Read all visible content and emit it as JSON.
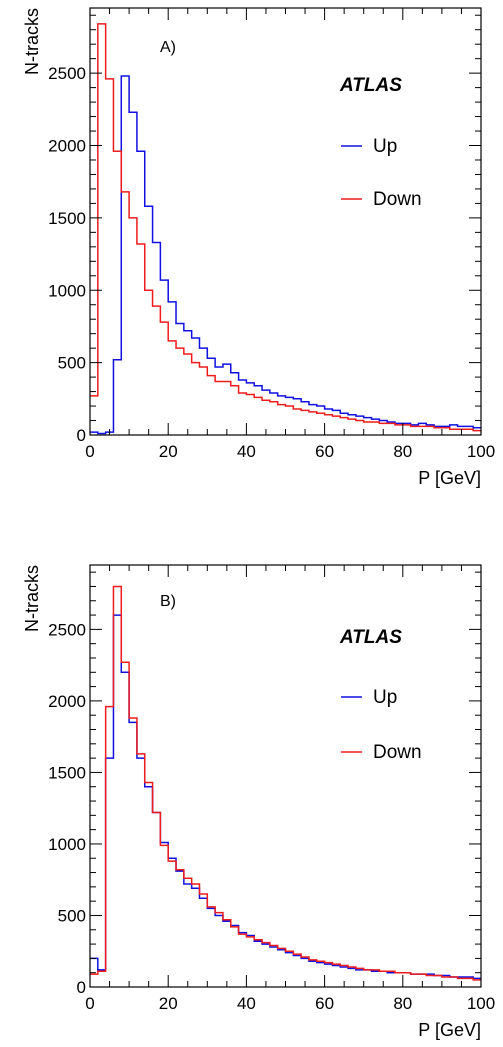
{
  "colors": {
    "up": "#1010e0",
    "down": "#ee1c1c",
    "axis": "#000000"
  },
  "chart_data": [
    {
      "type": "histogram",
      "panel_label": "A)",
      "experiment_label": "ATLAS",
      "xlabel": "P [GeV]",
      "ylabel": "N-tracks",
      "xlim": [
        0,
        100
      ],
      "ylim": [
        0,
        2950
      ],
      "x_ticks": [
        0,
        20,
        40,
        60,
        80,
        100
      ],
      "y_ticks": [
        0,
        500,
        1000,
        1500,
        2000,
        2500
      ],
      "bin_edges_start": 0,
      "bin_width": 2,
      "legend": {
        "placement": "right",
        "entries": [
          "Up",
          "Down"
        ]
      },
      "series": [
        {
          "name": "Up",
          "color": "#1010e0",
          "values": [
            20,
            10,
            20,
            520,
            2480,
            2230,
            1960,
            1580,
            1330,
            1070,
            920,
            770,
            720,
            670,
            600,
            530,
            470,
            490,
            430,
            380,
            360,
            340,
            310,
            290,
            270,
            260,
            250,
            230,
            210,
            200,
            180,
            170,
            150,
            140,
            130,
            120,
            110,
            100,
            90,
            80,
            80,
            70,
            80,
            70,
            60,
            60,
            70,
            60,
            60,
            50
          ]
        },
        {
          "name": "Down",
          "color": "#ee1c1c",
          "values": [
            270,
            2840,
            2460,
            1960,
            1680,
            1500,
            1320,
            1000,
            890,
            780,
            650,
            600,
            560,
            500,
            470,
            410,
            370,
            370,
            340,
            290,
            280,
            260,
            240,
            230,
            210,
            200,
            180,
            170,
            160,
            150,
            140,
            130,
            120,
            110,
            100,
            90,
            90,
            80,
            80,
            70,
            70,
            60,
            60,
            60,
            50,
            50,
            40,
            40,
            40,
            30
          ]
        }
      ]
    },
    {
      "type": "histogram",
      "panel_label": "B)",
      "experiment_label": "ATLAS",
      "xlabel": "P [GeV]",
      "ylabel": "N-tracks",
      "xlim": [
        0,
        100
      ],
      "ylim": [
        0,
        2950
      ],
      "x_ticks": [
        0,
        20,
        40,
        60,
        80,
        100
      ],
      "y_ticks": [
        0,
        500,
        1000,
        1500,
        2000,
        2500
      ],
      "bin_edges_start": 0,
      "bin_width": 2,
      "legend": {
        "placement": "right",
        "entries": [
          "Up",
          "Down"
        ]
      },
      "series": [
        {
          "name": "Up",
          "color": "#1010e0",
          "values": [
            200,
            120,
            1600,
            2600,
            2200,
            1850,
            1600,
            1400,
            1220,
            1010,
            900,
            810,
            720,
            690,
            620,
            550,
            500,
            460,
            430,
            380,
            360,
            320,
            300,
            280,
            260,
            240,
            220,
            200,
            180,
            170,
            160,
            150,
            140,
            130,
            120,
            120,
            110,
            110,
            100,
            100,
            100,
            90,
            90,
            90,
            80,
            80,
            70,
            70,
            70,
            60
          ]
        },
        {
          "name": "Down",
          "color": "#ee1c1c",
          "values": [
            90,
            110,
            1960,
            2800,
            2270,
            1880,
            1630,
            1430,
            1220,
            990,
            880,
            820,
            760,
            720,
            650,
            560,
            520,
            470,
            420,
            370,
            350,
            330,
            310,
            290,
            270,
            250,
            230,
            210,
            190,
            180,
            170,
            160,
            150,
            140,
            130,
            120,
            120,
            110,
            110,
            100,
            100,
            90,
            90,
            80,
            80,
            70,
            70,
            60,
            60,
            50
          ]
        }
      ]
    }
  ]
}
